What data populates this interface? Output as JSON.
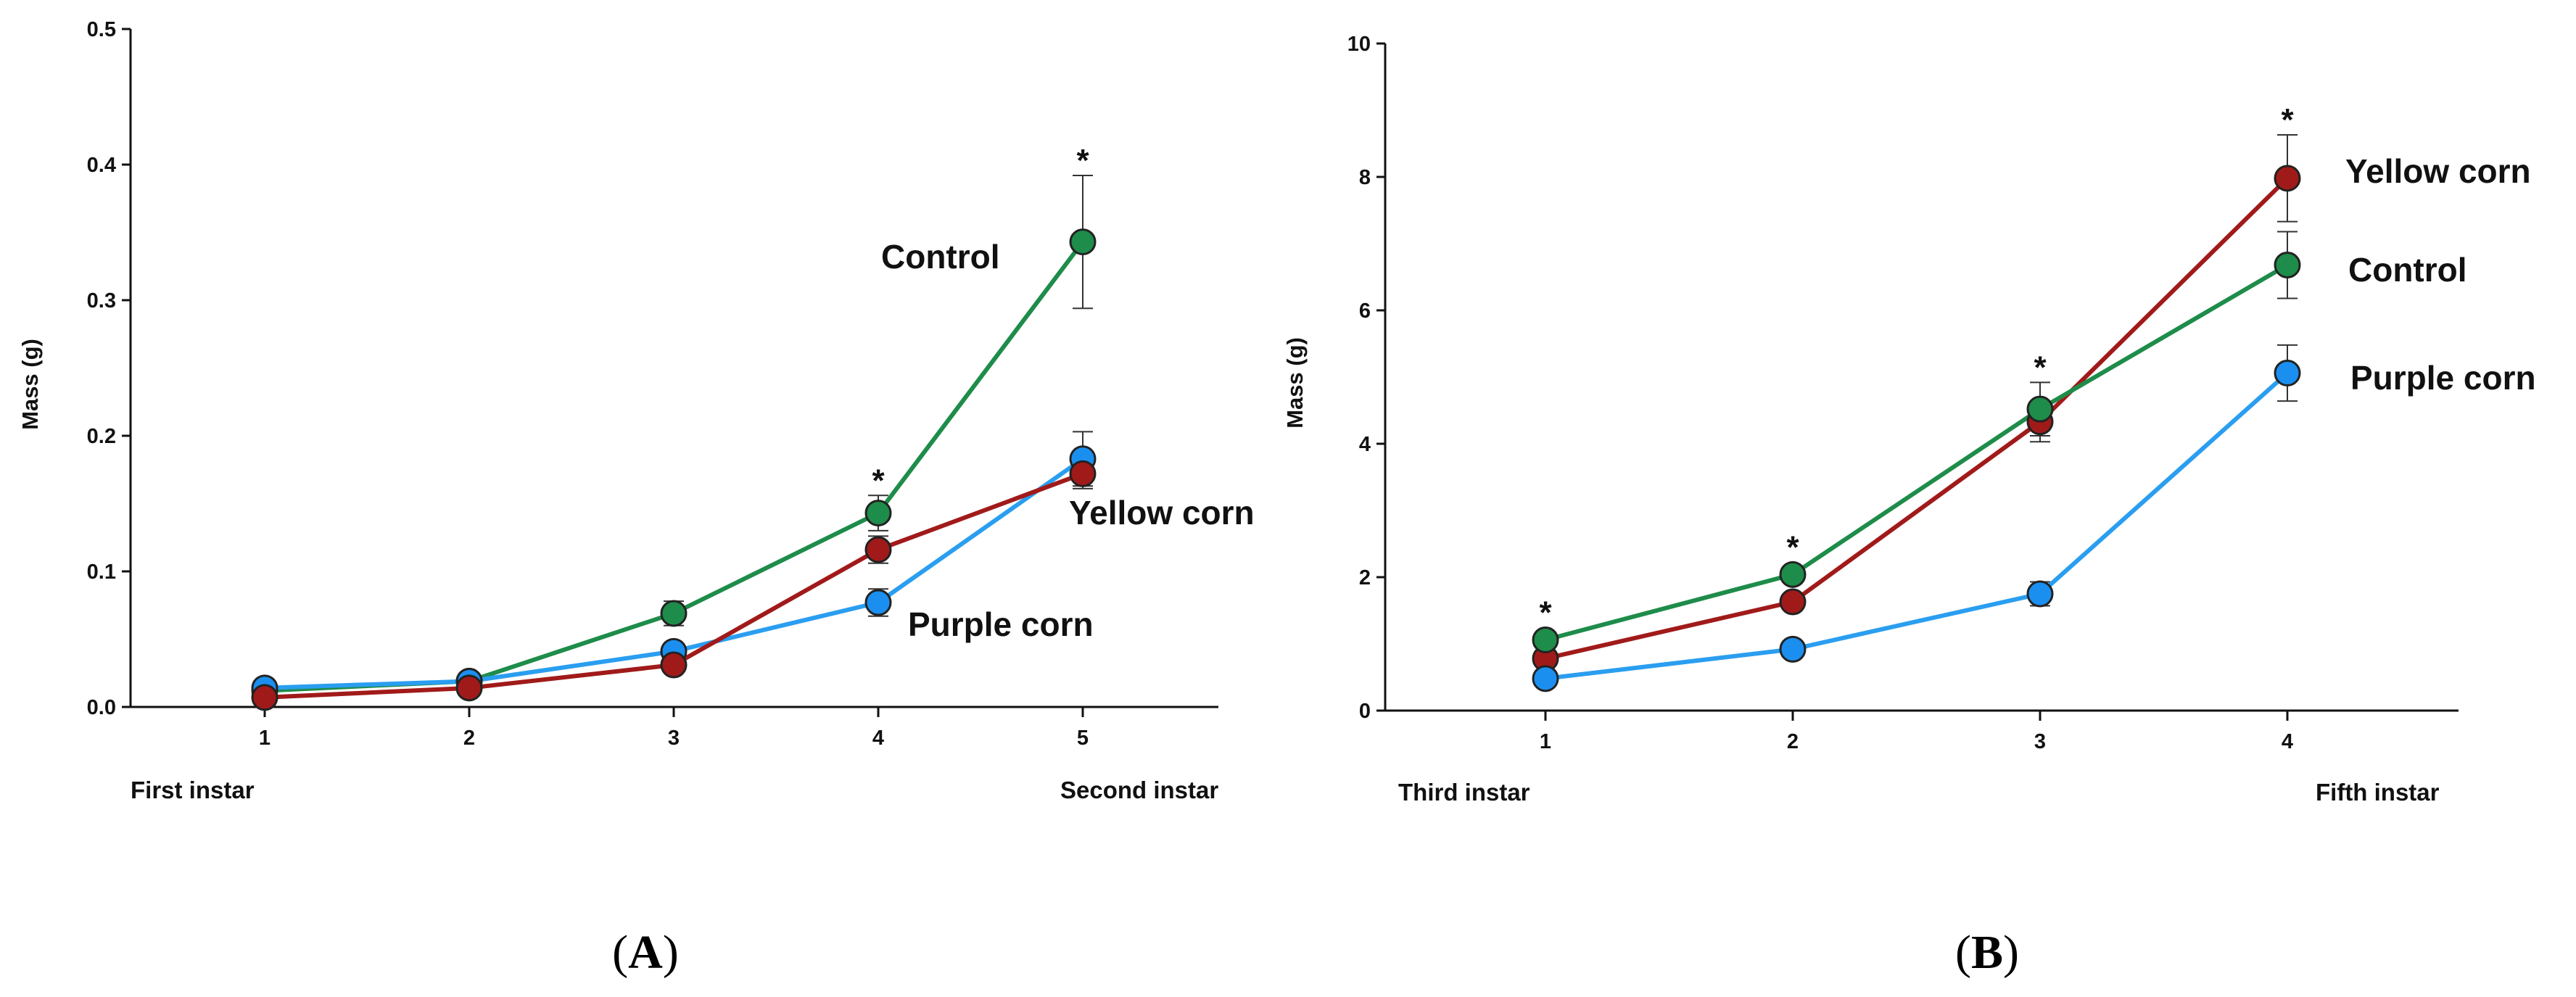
{
  "chart_data": [
    {
      "type": "line",
      "panel_label": "A",
      "ylabel": "Mass (g)",
      "xlabel": "",
      "ylim": [
        0,
        0.5
      ],
      "yticks": [
        "0.0",
        "0.1",
        "0.2",
        "0.3",
        "0.4",
        "0.5"
      ],
      "x": [
        1,
        2,
        3,
        4,
        5
      ],
      "xticks": [
        "1",
        "2",
        "3",
        "4",
        "5"
      ],
      "stage_labels": {
        "start": "First instar",
        "end": "Second instar"
      },
      "significance": [
        {
          "x": 4,
          "symbol": "*"
        },
        {
          "x": 5,
          "symbol": "*"
        }
      ],
      "series": [
        {
          "name": "Control",
          "color": "#1e8c4a",
          "marker": "#1e8c4a",
          "values": [
            0.012,
            0.019,
            0.069,
            0.143,
            0.343
          ],
          "errors": [
            0.002,
            0.003,
            0.009,
            0.013,
            0.049
          ]
        },
        {
          "name": "Purple corn",
          "color": "#2a9ef0",
          "marker": "#1b8ff0",
          "values": [
            0.014,
            0.019,
            0.041,
            0.077,
            0.183
          ],
          "errors": [
            0.002,
            0.002,
            0.006,
            0.01,
            0.02
          ]
        },
        {
          "name": "Yellow corn",
          "color": "#a11a1a",
          "marker": "#a11a1a",
          "values": [
            0.007,
            0.014,
            0.031,
            0.116,
            0.172
          ],
          "errors": [
            0.001,
            0.002,
            0.004,
            0.01,
            0.011
          ]
        }
      ]
    },
    {
      "type": "line",
      "panel_label": "B",
      "ylabel": "Mass (g)",
      "xlabel": "",
      "ylim": [
        0,
        10
      ],
      "yticks": [
        "0",
        "2",
        "4",
        "6",
        "8",
        "10"
      ],
      "x": [
        1,
        2,
        3,
        4
      ],
      "xticks": [
        "1",
        "2",
        "3",
        "4"
      ],
      "stage_labels": {
        "start": "Third instar",
        "end": "Fifth instar"
      },
      "significance": [
        {
          "x": 1,
          "symbol": "*"
        },
        {
          "x": 2,
          "symbol": "*"
        },
        {
          "x": 3,
          "symbol": "*"
        },
        {
          "x": 4,
          "symbol": "*"
        }
      ],
      "series": [
        {
          "name": "Yellow corn",
          "color": "#a11a1a",
          "marker": "#a11a1a",
          "values": [
            0.78,
            1.63,
            4.33,
            7.98
          ],
          "errors": [
            0.05,
            0.1,
            0.3,
            0.65
          ]
        },
        {
          "name": "Control",
          "color": "#1e8c4a",
          "marker": "#1e8c4a",
          "values": [
            1.06,
            2.04,
            4.52,
            6.68
          ],
          "errors": [
            0.06,
            0.12,
            0.4,
            0.5
          ]
        },
        {
          "name": "Purple corn",
          "color": "#2a9ef0",
          "marker": "#1b8ff0",
          "values": [
            0.48,
            0.92,
            1.75,
            5.06
          ],
          "errors": [
            0.04,
            0.06,
            0.18,
            0.42
          ]
        }
      ]
    }
  ]
}
